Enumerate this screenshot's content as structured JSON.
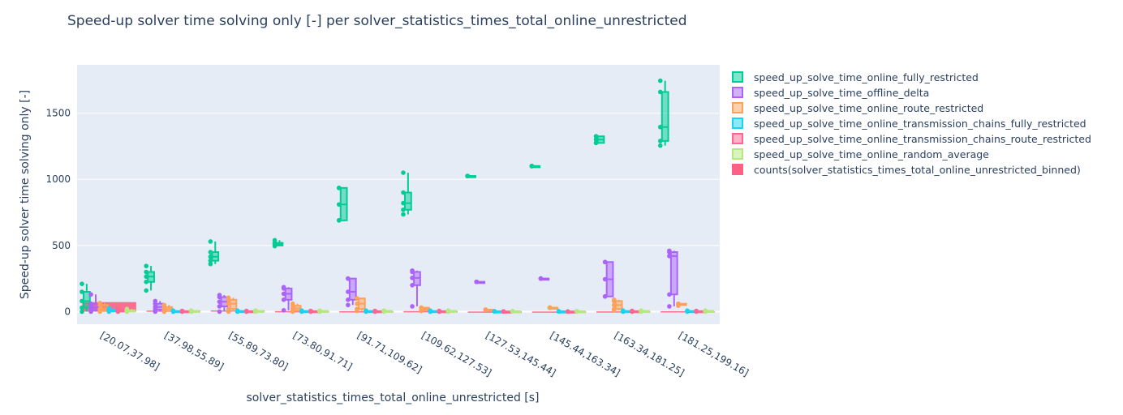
{
  "chart_data": {
    "type": "box",
    "title": "Speed-up solver time solving only [-] per solver_statistics_times_total_online_unrestricted",
    "xlabel": "solver_statistics_times_total_online_unrestricted [s]",
    "ylabel": "Speed-up solver time solving only [-]",
    "ylim": [
      -95,
      1865
    ],
    "yticks": [
      0,
      500,
      1000,
      1500
    ],
    "grid": true,
    "legend_position": "right",
    "categories": [
      "[20.07,37.98]",
      "[37.98,55.89]",
      "[55.89,73.80]",
      "[73.80,91.71]",
      "[91.71,109.62]",
      "[109.62,127.53]",
      "[127.53,145.44]",
      "[145.44,163.34]",
      "[163.34,181.25]",
      "[181.25,199.16]"
    ],
    "box_series": [
      {
        "name": "speed_up_solve_time_online_fully_restricted",
        "color": "#00cc96",
        "stats": [
          {
            "min": 0,
            "q1": 30,
            "median": 80,
            "q3": 150,
            "max": 210
          },
          {
            "min": 160,
            "q1": 225,
            "median": 265,
            "q3": 300,
            "max": 345
          },
          {
            "min": 360,
            "q1": 385,
            "median": 415,
            "q3": 450,
            "max": 530
          },
          {
            "min": 495,
            "q1": 500,
            "median": 510,
            "q3": 520,
            "max": 540
          },
          {
            "min": 690,
            "q1": 690,
            "median": 810,
            "q3": 935,
            "max": 935
          },
          {
            "min": 735,
            "q1": 770,
            "median": 820,
            "q3": 900,
            "max": 1050
          },
          {
            "min": 1025,
            "q1": 1025,
            "median": 1025,
            "q3": 1025,
            "max": 1025
          },
          {
            "min": 1100,
            "q1": 1100,
            "median": 1100,
            "q3": 1100,
            "max": 1100
          },
          {
            "min": 1275,
            "q1": 1275,
            "median": 1300,
            "q3": 1325,
            "max": 1325
          },
          {
            "min": 1255,
            "q1": 1290,
            "median": 1395,
            "q3": 1660,
            "max": 1745
          }
        ]
      },
      {
        "name": "speed_up_solve_time_offline_delta",
        "color": "#ab63fa",
        "stats": [
          {
            "min": 0,
            "q1": 10,
            "median": 30,
            "q3": 60,
            "max": 130
          },
          {
            "min": 0,
            "q1": 15,
            "median": 35,
            "q3": 60,
            "max": 80
          },
          {
            "min": 0,
            "q1": 40,
            "median": 75,
            "q3": 110,
            "max": 125
          },
          {
            "min": 10,
            "q1": 90,
            "median": 135,
            "q3": 175,
            "max": 185
          },
          {
            "min": 50,
            "q1": 90,
            "median": 150,
            "q3": 250,
            "max": 250
          },
          {
            "min": 40,
            "q1": 200,
            "median": 255,
            "q3": 300,
            "max": 310
          },
          {
            "min": 225,
            "q1": 225,
            "median": 225,
            "q3": 225,
            "max": 225
          },
          {
            "min": 250,
            "q1": 250,
            "median": 250,
            "q3": 250,
            "max": 250
          },
          {
            "min": 115,
            "q1": 115,
            "median": 245,
            "q3": 375,
            "max": 375
          },
          {
            "min": 40,
            "q1": 130,
            "median": 420,
            "q3": 450,
            "max": 460
          }
        ]
      },
      {
        "name": "speed_up_solve_time_online_route_restricted",
        "color": "#ffa15a",
        "stats": [
          {
            "min": 0,
            "q1": 5,
            "median": 20,
            "q3": 50,
            "max": 65
          },
          {
            "min": 0,
            "q1": 5,
            "median": 20,
            "q3": 35,
            "max": 50
          },
          {
            "min": 0,
            "q1": 20,
            "median": 60,
            "q3": 90,
            "max": 105
          },
          {
            "min": 0,
            "q1": 10,
            "median": 25,
            "q3": 45,
            "max": 60
          },
          {
            "min": 5,
            "q1": 20,
            "median": 60,
            "q3": 100,
            "max": 100
          },
          {
            "min": 5,
            "q1": 10,
            "median": 20,
            "q3": 30,
            "max": 30
          },
          {
            "min": 15,
            "q1": 15,
            "median": 15,
            "q3": 15,
            "max": 15
          },
          {
            "min": 30,
            "q1": 30,
            "median": 30,
            "q3": 30,
            "max": 30
          },
          {
            "min": 10,
            "q1": 20,
            "median": 50,
            "q3": 80,
            "max": 90
          },
          {
            "min": 45,
            "q1": 50,
            "median": 55,
            "q3": 60,
            "max": 60
          }
        ]
      },
      {
        "name": "speed_up_solve_time_online_transmission_chains_fully_restricted",
        "color": "#19d3f3",
        "stats": [
          {
            "min": 0,
            "q1": 2,
            "median": 6,
            "q3": 15,
            "max": 25
          },
          {
            "min": 0,
            "q1": 1,
            "median": 3,
            "q3": 5,
            "max": 8
          },
          {
            "min": 0,
            "q1": 1,
            "median": 3,
            "q3": 5,
            "max": 8
          },
          {
            "min": 0,
            "q1": 1,
            "median": 3,
            "q3": 5,
            "max": 8
          },
          {
            "min": 0,
            "q1": 1,
            "median": 3,
            "q3": 5,
            "max": 8
          },
          {
            "min": 0,
            "q1": 1,
            "median": 3,
            "q3": 5,
            "max": 8
          },
          {
            "min": 2,
            "q1": 2,
            "median": 2,
            "q3": 2,
            "max": 2
          },
          {
            "min": 2,
            "q1": 2,
            "median": 2,
            "q3": 2,
            "max": 2
          },
          {
            "min": 0,
            "q1": 1,
            "median": 3,
            "q3": 5,
            "max": 8
          },
          {
            "min": 0,
            "q1": 1,
            "median": 3,
            "q3": 5,
            "max": 8
          }
        ]
      },
      {
        "name": "speed_up_solve_time_online_transmission_chains_route_restricted",
        "color": "#ff6692",
        "stats": [
          {
            "min": 0,
            "q1": 1,
            "median": 4,
            "q3": 10,
            "max": 20
          },
          {
            "min": 0,
            "q1": 1,
            "median": 2,
            "q3": 4,
            "max": 6
          },
          {
            "min": 0,
            "q1": 1,
            "median": 2,
            "q3": 4,
            "max": 6
          },
          {
            "min": 0,
            "q1": 1,
            "median": 2,
            "q3": 4,
            "max": 6
          },
          {
            "min": 0,
            "q1": 1,
            "median": 2,
            "q3": 4,
            "max": 6
          },
          {
            "min": 0,
            "q1": 1,
            "median": 2,
            "q3": 4,
            "max": 6
          },
          {
            "min": 1,
            "q1": 1,
            "median": 1,
            "q3": 1,
            "max": 1
          },
          {
            "min": 1,
            "q1": 1,
            "median": 1,
            "q3": 1,
            "max": 1
          },
          {
            "min": 0,
            "q1": 1,
            "median": 2,
            "q3": 4,
            "max": 6
          },
          {
            "min": 0,
            "q1": 1,
            "median": 2,
            "q3": 4,
            "max": 6
          }
        ]
      },
      {
        "name": "speed_up_solve_time_online_random_average",
        "color": "#b6e880",
        "stats": [
          {
            "min": 0,
            "q1": 2,
            "median": 5,
            "q3": 10,
            "max": 20
          },
          {
            "min": 0,
            "q1": 2,
            "median": 4,
            "q3": 6,
            "max": 8
          },
          {
            "min": 0,
            "q1": 2,
            "median": 4,
            "q3": 6,
            "max": 8
          },
          {
            "min": 0,
            "q1": 2,
            "median": 4,
            "q3": 6,
            "max": 8
          },
          {
            "min": 0,
            "q1": 2,
            "median": 4,
            "q3": 6,
            "max": 8
          },
          {
            "min": 0,
            "q1": 2,
            "median": 4,
            "q3": 6,
            "max": 8
          },
          {
            "min": 3,
            "q1": 3,
            "median": 3,
            "q3": 3,
            "max": 3
          },
          {
            "min": 3,
            "q1": 3,
            "median": 3,
            "q3": 3,
            "max": 3
          },
          {
            "min": 0,
            "q1": 2,
            "median": 4,
            "q3": 6,
            "max": 8
          },
          {
            "min": 0,
            "q1": 2,
            "median": 4,
            "q3": 6,
            "max": 8
          }
        ]
      }
    ],
    "bar_series": {
      "name": "counts(solver_statistics_times_total_online_unrestricted_binned)",
      "color": "#fe6184",
      "values": [
        72,
        8,
        9,
        4,
        3,
        4,
        1,
        1,
        2,
        3
      ]
    }
  }
}
